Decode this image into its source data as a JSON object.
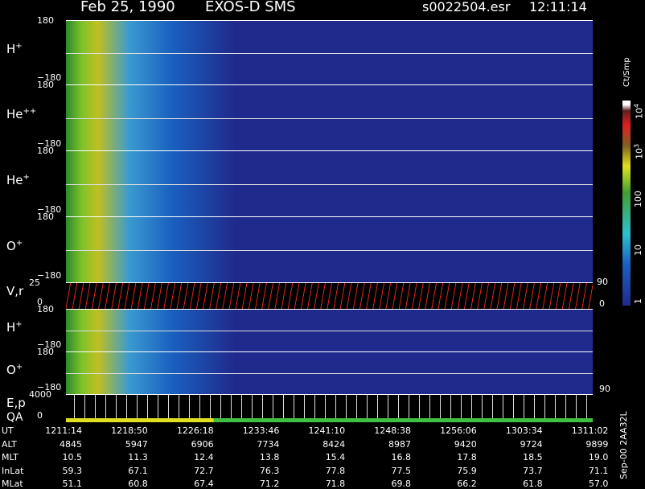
{
  "header": {
    "date": "Feb 25, 1990",
    "instrument": "EXOS-D SMS",
    "file": "s0022504.esr",
    "time": "12:11:14"
  },
  "panels": [
    {
      "label": "H",
      "sup": "+",
      "top_tick": "180",
      "bottom_tick": "−180"
    },
    {
      "label": "He",
      "sup": "++",
      "top_tick": "180",
      "bottom_tick": "−180"
    },
    {
      "label": "He",
      "sup": "+",
      "top_tick": "180",
      "bottom_tick": "−180"
    },
    {
      "label": "O",
      "sup": "+",
      "top_tick": "180",
      "bottom_tick": "−180"
    },
    {
      "label": "V,r",
      "top_tick": "25",
      "bottom_tick": "0",
      "right_top": "90",
      "right_bottom": "0"
    },
    {
      "label": "H",
      "sup": "+",
      "top_tick": "180",
      "bottom_tick": "−180"
    },
    {
      "label": "O",
      "sup": "+",
      "top_tick": "180",
      "bottom_tick": "−180",
      "right_bottom": "90"
    },
    {
      "label": "E,p",
      "label2": "QA",
      "top_tick": "4000",
      "bottom_tick": "0"
    }
  ],
  "colorbar": {
    "unit": "Ct/Smp",
    "labels": [
      {
        "text": "10",
        "sup": "4"
      },
      {
        "text": "10",
        "sup": "3"
      },
      {
        "text": "100"
      },
      {
        "text": "10"
      },
      {
        "text": "1"
      }
    ]
  },
  "ephemeris": {
    "rows": [
      {
        "name": "UT",
        "values": [
          "1211:14",
          "1218:50",
          "1226:18",
          "1233:46",
          "1241:10",
          "1248:38",
          "1256:06",
          "1303:34",
          "1311:02"
        ]
      },
      {
        "name": "ALT",
        "values": [
          "4845",
          "5947",
          "6906",
          "7734",
          "8424",
          "8987",
          "9420",
          "9724",
          "9899"
        ]
      },
      {
        "name": "MLT",
        "values": [
          "10.5",
          "11.3",
          "12.4",
          "13.8",
          "15.4",
          "16.8",
          "17.8",
          "18.5",
          "19.0"
        ]
      },
      {
        "name": "InLat",
        "values": [
          "59.3",
          "67.1",
          "72.7",
          "76.3",
          "77.8",
          "77.5",
          "75.9",
          "73.7",
          "71.1"
        ]
      },
      {
        "name": "MLat",
        "values": [
          "51.1",
          "60.8",
          "67.4",
          "71.2",
          "71.8",
          "69.8",
          "66.2",
          "61.8",
          "57.0"
        ]
      }
    ]
  },
  "footer": "Sep-00  2AA32L"
}
